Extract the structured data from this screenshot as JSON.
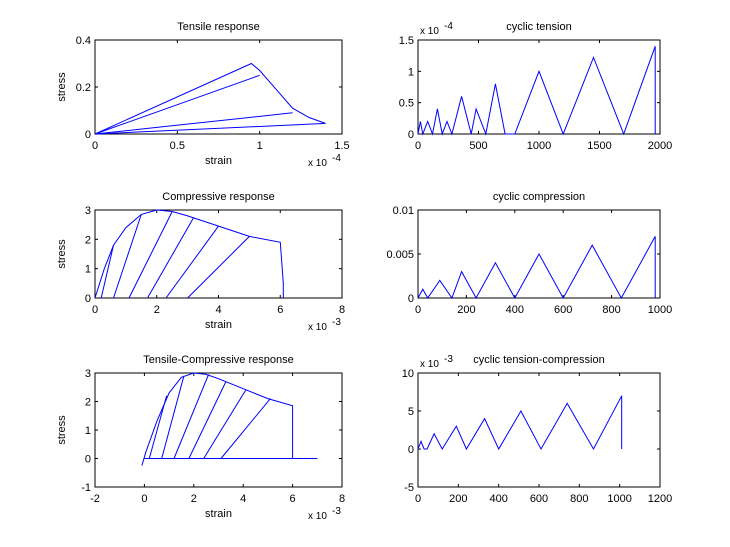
{
  "colors": {
    "line": "#0000ff",
    "axis": "#000000",
    "background": "#ffffff"
  },
  "chart_data": [
    {
      "type": "line",
      "title": "Tensile response",
      "xlabel": "strain",
      "ylabel": "stress",
      "exponent_label": "x 10",
      "exponent_power": "-4",
      "xlim": [
        0,
        1.5
      ],
      "ylim": [
        0,
        0.4
      ],
      "xticks": [
        "0",
        "0.5",
        "1",
        "1.5"
      ],
      "yticks": [
        "0",
        "0.2",
        "0.4"
      ],
      "series": [
        {
          "x": [
            0,
            0.95,
            1.0,
            1.1,
            1.2,
            1.3,
            1.4
          ],
          "y": [
            0,
            0.3,
            0.27,
            0.19,
            0.11,
            0.07,
            0.045
          ]
        },
        {
          "x": [
            0,
            1.0
          ],
          "y": [
            0,
            0.25
          ]
        },
        {
          "x": [
            0,
            1.2
          ],
          "y": [
            0,
            0.09
          ]
        },
        {
          "x": [
            0,
            1.4
          ],
          "y": [
            0,
            0.045
          ]
        }
      ]
    },
    {
      "type": "line",
      "title": "cyclic tension",
      "xlabel": "",
      "ylabel": "",
      "exponent_label": "x 10",
      "exponent_power": "-4",
      "xlim": [
        0,
        2000
      ],
      "ylim": [
        0,
        1.5
      ],
      "xticks": [
        "0",
        "500",
        "1000",
        "1500",
        "2000"
      ],
      "yticks": [
        "0",
        "0.5",
        "1",
        "1.5"
      ],
      "series": [
        {
          "x": [
            0,
            20,
            40,
            80,
            120,
            160,
            200,
            240,
            280,
            360,
            440,
            480,
            560,
            640,
            720,
            800,
            1000,
            1200,
            1450,
            1700,
            1960,
            1960
          ],
          "y": [
            0,
            0.2,
            0,
            0.2,
            0,
            0.4,
            0,
            0.2,
            0,
            0.6,
            0,
            0.4,
            0,
            0.8,
            0,
            0,
            1.0,
            0,
            1.22,
            0,
            1.4,
            0
          ]
        }
      ]
    },
    {
      "type": "line",
      "title": "Compressive response",
      "xlabel": "strain",
      "ylabel": "stress",
      "exponent_label": "x 10",
      "exponent_power": "-3",
      "xlim": [
        0,
        8
      ],
      "ylim": [
        0,
        3
      ],
      "xticks": [
        "0",
        "2",
        "4",
        "6",
        "8"
      ],
      "yticks": [
        "0",
        "1",
        "2",
        "3"
      ],
      "series": [
        {
          "x": [
            0,
            0.3,
            0.6,
            1.0,
            1.5,
            2.0,
            2.5,
            3.0,
            4.0,
            5.0,
            6.0,
            6.1,
            6.1
          ],
          "y": [
            0,
            1.0,
            1.8,
            2.4,
            2.85,
            3.0,
            2.95,
            2.8,
            2.45,
            2.1,
            1.9,
            0.5,
            0
          ]
        },
        {
          "x": [
            0.2,
            0.6
          ],
          "y": [
            0,
            1.8
          ]
        },
        {
          "x": [
            0.6,
            1.5
          ],
          "y": [
            0,
            2.85
          ]
        },
        {
          "x": [
            1.1,
            2.5
          ],
          "y": [
            0,
            2.95
          ]
        },
        {
          "x": [
            1.7,
            3.2
          ],
          "y": [
            0,
            2.75
          ]
        },
        {
          "x": [
            2.3,
            4.0
          ],
          "y": [
            0,
            2.45
          ]
        },
        {
          "x": [
            3.0,
            5.0
          ],
          "y": [
            0,
            2.1
          ]
        }
      ]
    },
    {
      "type": "line",
      "title": "cyclic compression",
      "xlabel": "",
      "ylabel": "",
      "exponent_label": "",
      "exponent_power": "",
      "xlim": [
        0,
        1000
      ],
      "ylim": [
        0,
        0.01
      ],
      "xticks": [
        "0",
        "200",
        "400",
        "600",
        "800",
        "1000"
      ],
      "yticks": [
        "0",
        "0.005",
        "0.01"
      ],
      "series": [
        {
          "x": [
            0,
            20,
            40,
            90,
            140,
            180,
            240,
            320,
            400,
            500,
            600,
            720,
            840,
            980,
            980
          ],
          "y": [
            0,
            0.001,
            0,
            0.002,
            0,
            0.003,
            0,
            0.004,
            0,
            0.005,
            0,
            0.006,
            0,
            0.007,
            0
          ]
        }
      ]
    },
    {
      "type": "line",
      "title": "Tensile-Compressive response",
      "xlabel": "strain",
      "ylabel": "stress",
      "exponent_label": "x 10",
      "exponent_power": "-3",
      "xlim": [
        -2,
        8
      ],
      "ylim": [
        -1,
        3
      ],
      "xticks": [
        "-2",
        "0",
        "2",
        "4",
        "6",
        "8"
      ],
      "yticks": [
        "-1",
        "0",
        "1",
        "2",
        "3"
      ],
      "series": [
        {
          "x": [
            -0.1,
            0.05,
            0.5,
            1.0,
            1.5,
            2.0,
            2.5,
            3.0,
            4.0,
            5.0,
            6.0,
            6.0,
            6.0
          ],
          "y": [
            -0.25,
            0.2,
            1.3,
            2.3,
            2.85,
            3.0,
            2.95,
            2.8,
            2.45,
            2.1,
            1.85,
            0.5,
            0
          ]
        },
        {
          "x": [
            0,
            7.0
          ],
          "y": [
            0,
            0
          ]
        },
        {
          "x": [
            0.2,
            0.9
          ],
          "y": [
            0,
            2.2
          ]
        },
        {
          "x": [
            0.7,
            1.6
          ],
          "y": [
            0,
            2.9
          ]
        },
        {
          "x": [
            1.2,
            2.6
          ],
          "y": [
            0,
            2.95
          ]
        },
        {
          "x": [
            1.8,
            3.3
          ],
          "y": [
            0,
            2.7
          ]
        },
        {
          "x": [
            2.4,
            4.1
          ],
          "y": [
            0,
            2.4
          ]
        },
        {
          "x": [
            3.1,
            5.1
          ],
          "y": [
            0,
            2.1
          ]
        }
      ]
    },
    {
      "type": "line",
      "title": "cyclic tension-compression",
      "xlabel": "",
      "ylabel": "",
      "exponent_label": "x 10",
      "exponent_power": "-3",
      "xlim": [
        0,
        1200
      ],
      "ylim": [
        -5,
        10
      ],
      "xticks": [
        "0",
        "200",
        "400",
        "600",
        "800",
        "1000",
        "1200"
      ],
      "yticks": [
        "-5",
        "0",
        "5",
        "10"
      ],
      "series": [
        {
          "x": [
            0,
            15,
            30,
            45,
            80,
            120,
            190,
            240,
            330,
            400,
            510,
            610,
            740,
            870,
            1010,
            1010
          ],
          "y": [
            0,
            1,
            0,
            0,
            2,
            0,
            3,
            0,
            4,
            0,
            5,
            0,
            6,
            0,
            7,
            0
          ]
        }
      ]
    }
  ]
}
